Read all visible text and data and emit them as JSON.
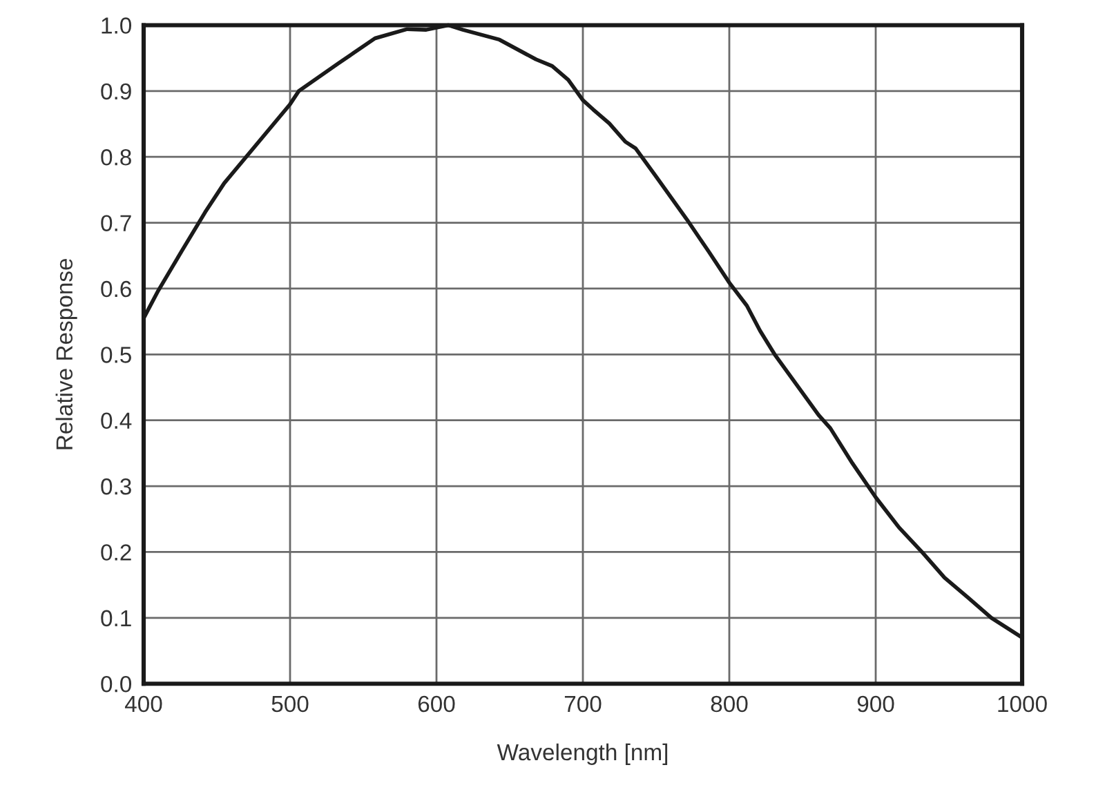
{
  "chart_data": {
    "type": "line",
    "xlabel": "Wavelength [nm]",
    "ylabel": "Relative Response",
    "series": [
      {
        "color": "#1a1a1a",
        "x": [
          400,
          410,
          426,
          442,
          455,
          470,
          500,
          506,
          533,
          558,
          580,
          593,
          608,
          618,
          643,
          668,
          679,
          690,
          700,
          707,
          718,
          729,
          736,
          752,
          771,
          786,
          800,
          812,
          821,
          831,
          861,
          869,
          884,
          900,
          916,
          932,
          947,
          963,
          979,
          1000
        ],
        "values": [
          0.555,
          0.597,
          0.657,
          0.716,
          0.76,
          0.8,
          0.88,
          0.9,
          0.942,
          0.98,
          0.994,
          0.993,
          1.0,
          0.993,
          0.978,
          0.948,
          0.938,
          0.917,
          0.886,
          0.872,
          0.851,
          0.823,
          0.813,
          0.764,
          0.705,
          0.656,
          0.609,
          0.574,
          0.536,
          0.5,
          0.408,
          0.388,
          0.335,
          0.283,
          0.237,
          0.199,
          0.161,
          0.131,
          0.1,
          0.07
        ]
      }
    ],
    "xlim": [
      400,
      1000
    ],
    "xticks": [
      400,
      500,
      600,
      700,
      800,
      900,
      1000
    ],
    "ylim": [
      0,
      1
    ],
    "yticks": [
      {
        "value": 0,
        "label": "0.0"
      },
      0.1,
      0.2,
      0.3,
      0.4,
      0.5,
      0.6,
      0.7,
      0.8,
      0.9,
      {
        "value": 1,
        "label": "1.0"
      }
    ],
    "grid": true
  }
}
